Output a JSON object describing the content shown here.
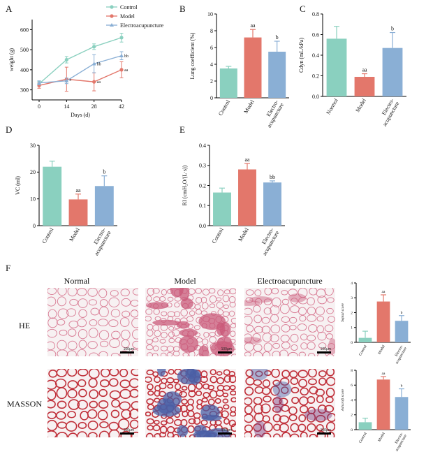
{
  "panel_letters": [
    "A",
    "B",
    "C",
    "D",
    "E",
    "F"
  ],
  "colors": {
    "control": "#8ad0bf",
    "model": "#e3776b",
    "electro": "#8aafd5",
    "axis": "#000000"
  },
  "chart_data": [
    {
      "panel": "A",
      "type": "line",
      "xlabel": "Days (d)",
      "ylabel": "weight (g)",
      "x": [
        0,
        14,
        28,
        42
      ],
      "xticks": [
        "0",
        "14",
        "28",
        "42"
      ],
      "ylim": [
        250,
        650
      ],
      "yticks": [
        "300",
        "400",
        "500",
        "600"
      ],
      "legend_position": "top-right",
      "series": [
        {
          "name": "Control",
          "color": "#8ad0bf",
          "marker": "circle",
          "values": [
            330,
            450,
            515,
            560
          ],
          "errors": [
            12,
            16,
            14,
            22
          ],
          "labels": [
            "",
            "",
            "",
            ""
          ]
        },
        {
          "name": "Model",
          "color": "#e3776b",
          "marker": "circle",
          "values": [
            322,
            353,
            340,
            400
          ],
          "errors": [
            14,
            60,
            45,
            40
          ],
          "labels": [
            "",
            "a",
            "aa",
            "aa"
          ]
        },
        {
          "name": "Electroacupuncture",
          "color": "#8aafd5",
          "marker": "triangle",
          "values": [
            335,
            345,
            430,
            470
          ],
          "errors": [
            10,
            14,
            45,
            20
          ],
          "labels": [
            "",
            "",
            "bb",
            "bb"
          ]
        }
      ]
    },
    {
      "panel": "B",
      "type": "bar",
      "ylabel": "Lung coefficient (%)",
      "ylim": [
        0,
        10
      ],
      "yticks": [
        "0",
        "2",
        "4",
        "6",
        "8",
        "10"
      ],
      "categories": [
        "Control",
        "Model",
        "Electro-\nacupuncture"
      ],
      "values": [
        3.5,
        7.2,
        5.5
      ],
      "errors": [
        0.25,
        0.95,
        1.25
      ],
      "sig": [
        "",
        "aa",
        "b"
      ]
    },
    {
      "panel": "C",
      "type": "bar",
      "ylabel": "Cdyn (mL/kPa)",
      "ylim": [
        0,
        0.8
      ],
      "yticks": [
        "0.0",
        "0.2",
        "0.4",
        "0.6",
        "0.8"
      ],
      "categories": [
        "Normol",
        "Model",
        "Electro-\nacupuncture"
      ],
      "values": [
        0.56,
        0.19,
        0.47
      ],
      "errors": [
        0.12,
        0.03,
        0.15
      ],
      "sig": [
        "",
        "aa",
        "b"
      ]
    },
    {
      "panel": "D",
      "type": "bar",
      "ylabel": "VC (ml)",
      "ylim": [
        0,
        30
      ],
      "yticks": [
        "0",
        "10",
        "20",
        "30"
      ],
      "categories": [
        "Control",
        "Model",
        "Electro-\nacupuncture"
      ],
      "values": [
        22,
        9.8,
        14.8
      ],
      "errors": [
        2.1,
        2.0,
        3.8
      ],
      "sig": [
        "",
        "aa",
        "b"
      ]
    },
    {
      "panel": "E",
      "type": "bar",
      "ylabel": "RI (cmH₂O/(L·s))",
      "ylim": [
        0,
        0.4
      ],
      "yticks": [
        "0.0",
        "0.1",
        "0.2",
        "0.3",
        "0.4"
      ],
      "categories": [
        "Control",
        "Model",
        "Electro-\nacupuncture"
      ],
      "values": [
        0.165,
        0.28,
        0.215
      ],
      "errors": [
        0.022,
        0.03,
        0.008
      ],
      "sig": [
        "",
        "aa",
        "bb"
      ]
    },
    {
      "panel": "F-HE",
      "type": "bar",
      "ylabel": "Septal score",
      "ylim": [
        0,
        4
      ],
      "yticks": [
        "0",
        "1",
        "2",
        "3",
        "4"
      ],
      "categories": [
        "Control",
        "Model",
        "Electro-\nacupuncture"
      ],
      "values": [
        0.3,
        2.75,
        1.45
      ],
      "errors": [
        0.45,
        0.45,
        0.35
      ],
      "sig": [
        "",
        "aa",
        "b"
      ]
    },
    {
      "panel": "F-MASSON",
      "type": "bar",
      "ylabel": "Ashcroft score",
      "ylim": [
        0,
        8
      ],
      "yticks": [
        "0",
        "2",
        "4",
        "6",
        "8"
      ],
      "categories": [
        "Control",
        "Model",
        "Electro-\nacupuncture"
      ],
      "values": [
        1.0,
        6.75,
        4.4
      ],
      "errors": [
        0.55,
        0.4,
        1.1
      ],
      "sig": [
        "",
        "aa",
        "b"
      ]
    }
  ],
  "panel_f": {
    "columns": [
      "Normal",
      "Model",
      "Electroacupuncture"
    ],
    "rows": [
      "HE",
      "MASSON"
    ],
    "scale_label": "100μm"
  }
}
